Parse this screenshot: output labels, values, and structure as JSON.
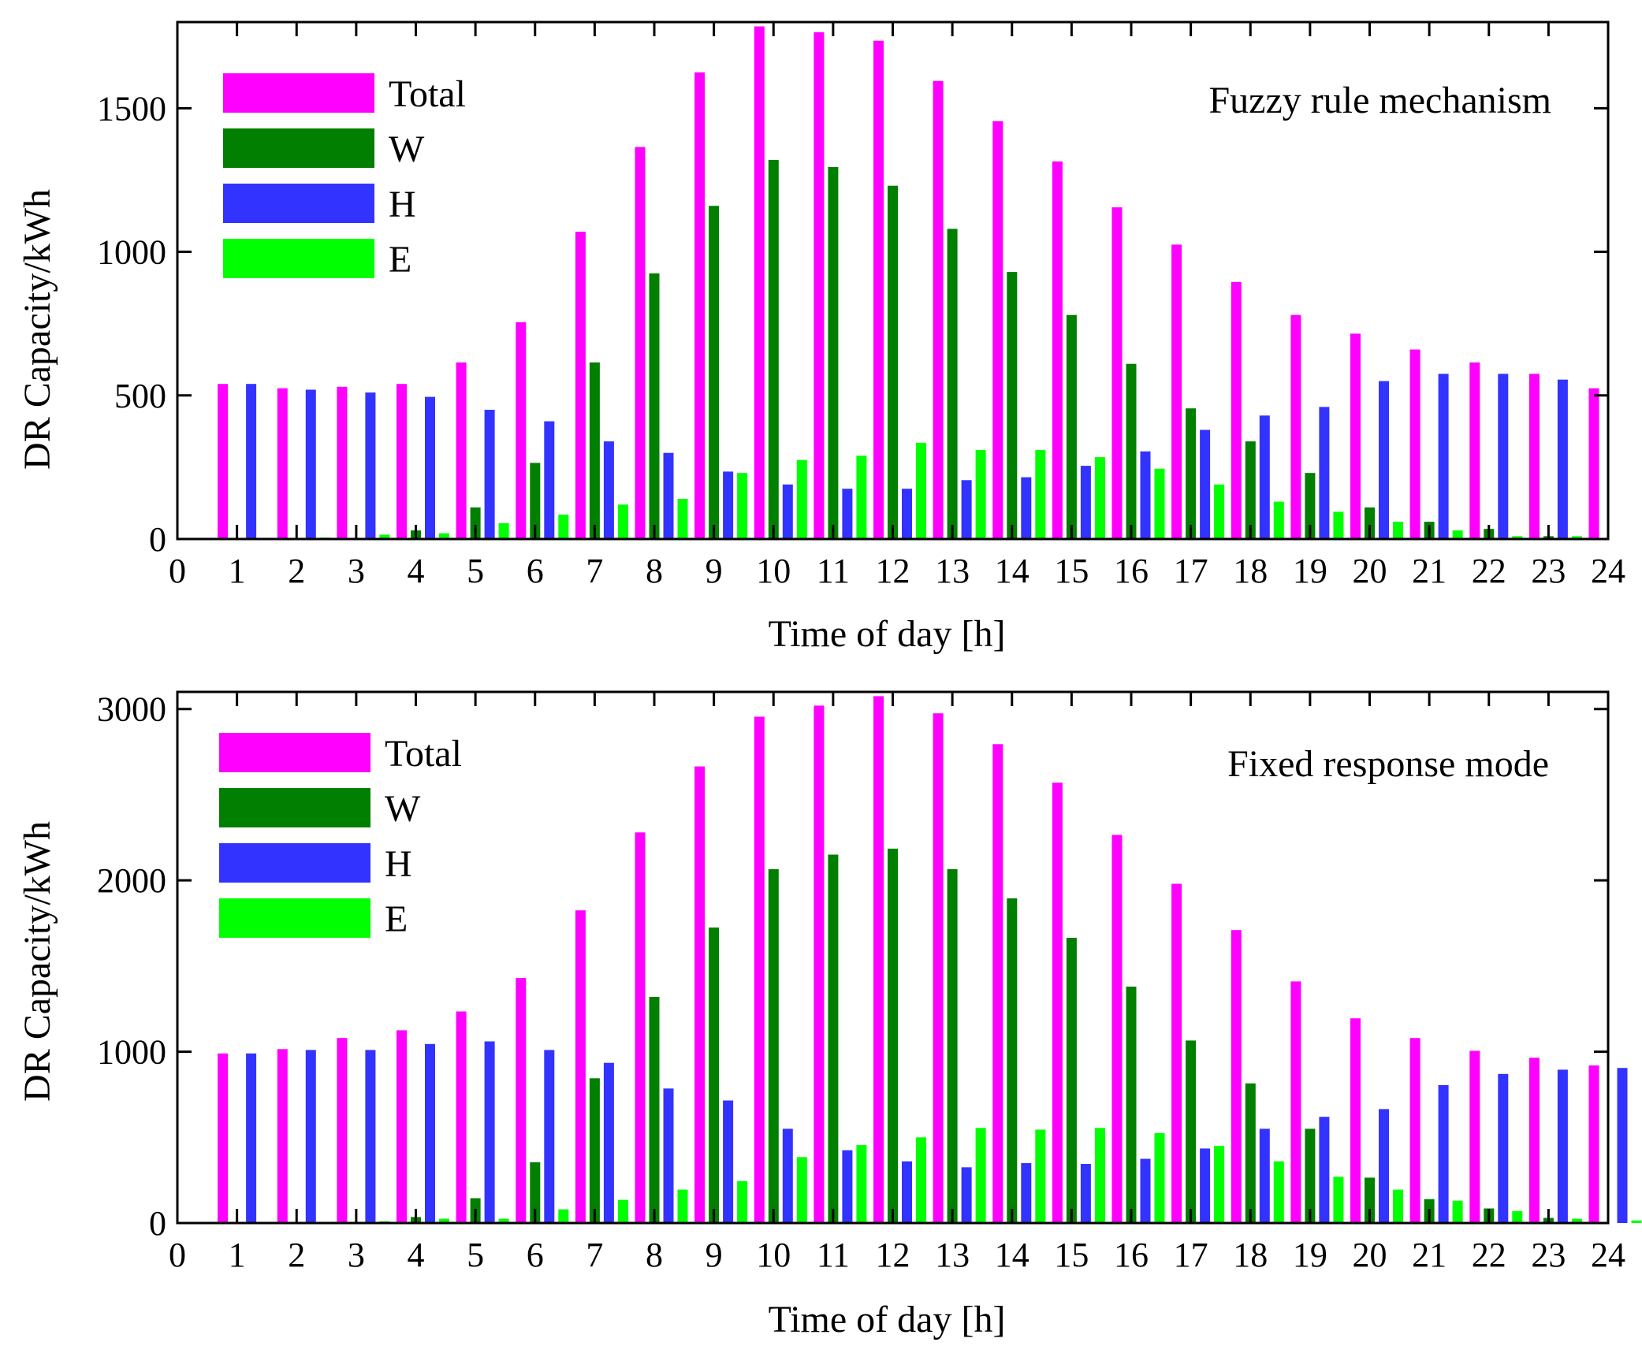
{
  "colors": {
    "total": "#ff00ff",
    "w": "#007f00",
    "h": "#3333ff",
    "e": "#00ff00"
  },
  "chart_data": [
    {
      "type": "bar",
      "annotation": "Fuzzy rule mechanism",
      "xlabel": "Time of day [h]",
      "ylabel": "DR Capacity/kWh",
      "xlim": [
        0,
        24
      ],
      "ylim": [
        0,
        1800
      ],
      "xticks": [
        "0",
        "1",
        "2",
        "3",
        "4",
        "5",
        "6",
        "7",
        "8",
        "9",
        "10",
        "11",
        "12",
        "13",
        "14",
        "15",
        "16",
        "17",
        "18",
        "19",
        "20",
        "21",
        "22",
        "23",
        "24"
      ],
      "yticks": [
        {
          "value": 0,
          "label": "0"
        },
        {
          "value": 500,
          "label": "500"
        },
        {
          "value": 1000,
          "label": "1000"
        },
        {
          "value": 1500,
          "label": "1500"
        }
      ],
      "legend_position": "top-left",
      "categories": [
        "1",
        "2",
        "3",
        "4",
        "5",
        "6",
        "7",
        "8",
        "9",
        "10",
        "11",
        "12",
        "13",
        "14",
        "15",
        "16",
        "17",
        "18",
        "19",
        "20",
        "21",
        "22",
        "23",
        "24"
      ],
      "series": [
        {
          "name": "Total",
          "key": "total",
          "values": [
            540,
            525,
            530,
            540,
            615,
            755,
            1070,
            1365,
            1625,
            1785,
            1765,
            1735,
            1595,
            1455,
            1315,
            1155,
            1025,
            895,
            780,
            715,
            660,
            615,
            575,
            525
          ]
        },
        {
          "name": "W",
          "key": "w",
          "values": [
            0,
            0,
            0,
            30,
            110,
            265,
            615,
            925,
            1160,
            1320,
            1295,
            1230,
            1080,
            930,
            780,
            610,
            455,
            340,
            230,
            110,
            60,
            35,
            10,
            0
          ]
        },
        {
          "name": "H",
          "key": "h",
          "values": [
            540,
            520,
            510,
            495,
            450,
            410,
            340,
            300,
            235,
            190,
            175,
            175,
            205,
            215,
            255,
            305,
            380,
            430,
            460,
            550,
            575,
            575,
            555,
            0
          ]
        },
        {
          "name": "E",
          "key": "e",
          "values": [
            0,
            5,
            15,
            20,
            55,
            85,
            120,
            140,
            230,
            275,
            290,
            335,
            310,
            310,
            285,
            245,
            190,
            130,
            95,
            60,
            30,
            10,
            10,
            0
          ]
        }
      ]
    },
    {
      "type": "bar",
      "annotation": "Fixed response mode",
      "xlabel": "Time of day [h]",
      "ylabel": "DR Capacity/kWh",
      "xlim": [
        0,
        24
      ],
      "ylim": [
        0,
        3100
      ],
      "xticks": [
        "0",
        "1",
        "2",
        "3",
        "4",
        "5",
        "6",
        "7",
        "8",
        "9",
        "10",
        "11",
        "12",
        "13",
        "14",
        "15",
        "16",
        "17",
        "18",
        "19",
        "20",
        "21",
        "22",
        "23",
        "24"
      ],
      "yticks": [
        {
          "value": 0,
          "label": "0"
        },
        {
          "value": 1000,
          "label": "1000"
        },
        {
          "value": 2000,
          "label": "2000"
        },
        {
          "value": 3000,
          "label": "3000"
        }
      ],
      "legend_position": "top-left",
      "categories": [
        "1",
        "2",
        "3",
        "4",
        "5",
        "6",
        "7",
        "8",
        "9",
        "10",
        "11",
        "12",
        "13",
        "14",
        "15",
        "16",
        "17",
        "18",
        "19",
        "20",
        "21",
        "22",
        "23",
        "24"
      ],
      "series": [
        {
          "name": "Total",
          "key": "total",
          "values": [
            990,
            1015,
            1080,
            1125,
            1235,
            1430,
            1825,
            2280,
            2665,
            2955,
            3020,
            3075,
            2975,
            2795,
            2570,
            2265,
            1980,
            1710,
            1410,
            1195,
            1080,
            1005,
            965,
            920
          ]
        },
        {
          "name": "W",
          "key": "w",
          "values": [
            0,
            0,
            0,
            35,
            145,
            355,
            845,
            1320,
            1725,
            2065,
            2150,
            2185,
            2065,
            1895,
            1665,
            1380,
            1065,
            815,
            550,
            265,
            140,
            85,
            30,
            0
          ]
        },
        {
          "name": "H",
          "key": "h",
          "values": [
            990,
            1010,
            1010,
            1045,
            1060,
            1010,
            935,
            785,
            715,
            550,
            425,
            360,
            325,
            350,
            345,
            375,
            435,
            550,
            620,
            665,
            805,
            870,
            895,
            905
          ]
        },
        {
          "name": "E",
          "key": "e",
          "values": [
            0,
            5,
            10,
            25,
            25,
            80,
            135,
            195,
            245,
            385,
            455,
            500,
            555,
            545,
            555,
            525,
            450,
            360,
            270,
            195,
            130,
            70,
            25,
            15
          ]
        }
      ]
    }
  ]
}
